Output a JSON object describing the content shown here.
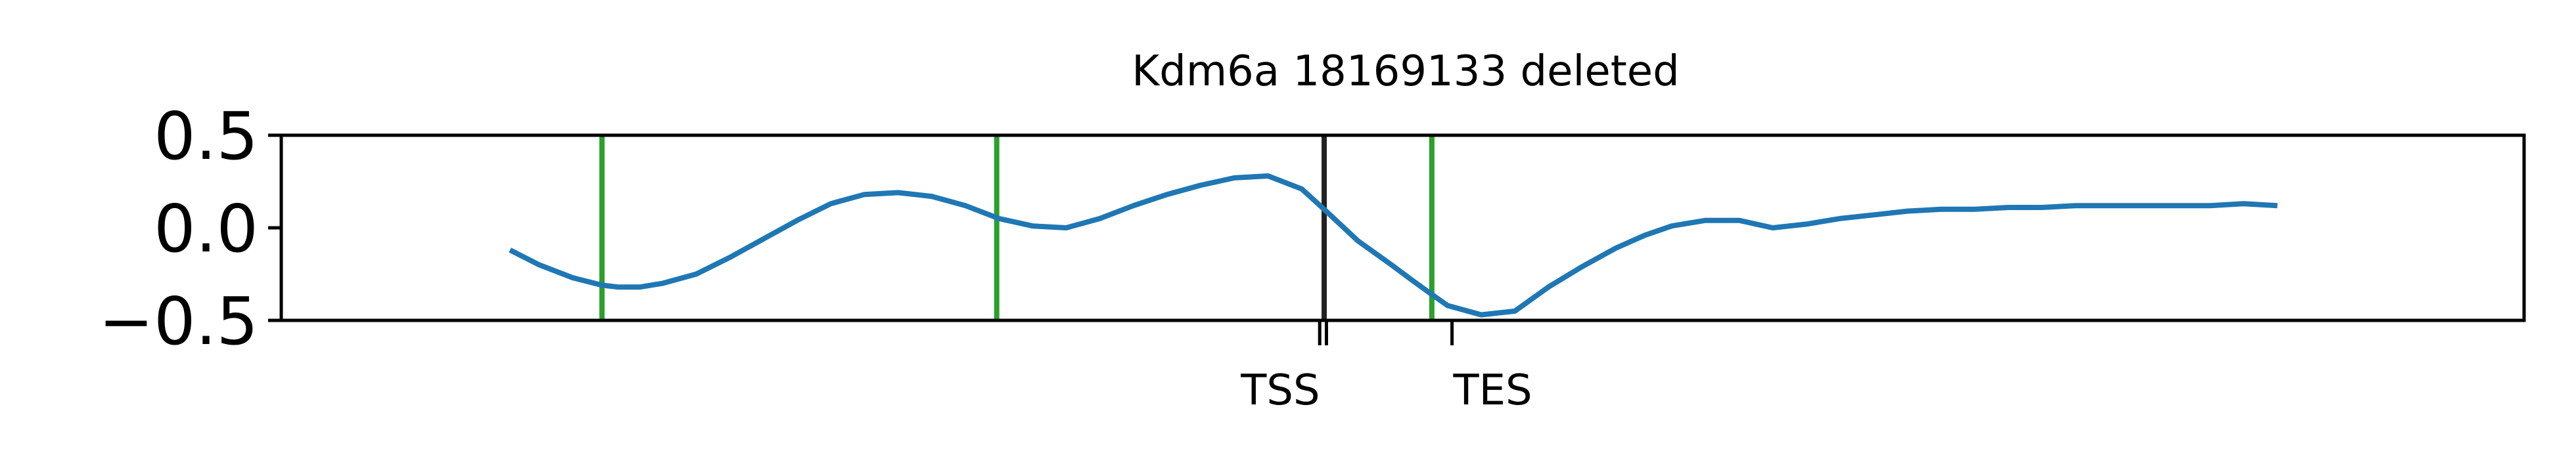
{
  "chart_data": {
    "type": "line",
    "title": "Kdm6a 18169133 deleted",
    "xlabel": "",
    "ylabel": "",
    "xlim": [
      0,
      100
    ],
    "ylim": [
      -0.5,
      0.5
    ],
    "yticks": [
      {
        "value": 0.5,
        "label": "0.5"
      },
      {
        "value": 0.0,
        "label": "0.0"
      },
      {
        "value": -0.5,
        "label": "−0.5"
      }
    ],
    "xticks": [
      {
        "value": 46.3,
        "label": ""
      },
      {
        "value": 46.6,
        "label": "TSS"
      },
      {
        "value": 52.2,
        "label": "TES"
      }
    ],
    "grid": false,
    "legend": "none",
    "series": [
      {
        "color": "#1f77b4",
        "x": [
          10.2,
          11.5,
          13,
          14.3,
          15,
          16,
          17,
          18.5,
          20,
          21.5,
          23,
          24.5,
          26,
          27.5,
          29,
          30.5,
          32,
          33.5,
          35,
          36.5,
          38,
          39.5,
          41,
          42.5,
          44,
          45.5,
          46.5,
          48,
          49.5,
          50.5,
          51.3,
          52,
          53.5,
          55,
          56.5,
          58,
          59.5,
          60.8,
          62,
          63.5,
          65,
          66.5,
          68,
          69.5,
          71,
          72.5,
          74,
          75.5,
          77,
          78.5,
          80,
          81.5,
          83,
          84.5,
          86,
          87.5,
          89
        ],
        "y": [
          -0.12,
          -0.2,
          -0.27,
          -0.31,
          -0.32,
          -0.32,
          -0.3,
          -0.25,
          -0.16,
          -0.06,
          0.04,
          0.13,
          0.18,
          0.19,
          0.17,
          0.12,
          0.05,
          0.01,
          0.0,
          0.05,
          0.12,
          0.18,
          0.23,
          0.27,
          0.28,
          0.21,
          0.1,
          -0.07,
          -0.2,
          -0.29,
          -0.36,
          -0.42,
          -0.47,
          -0.45,
          -0.32,
          -0.21,
          -0.11,
          -0.04,
          0.01,
          0.04,
          0.04,
          0.0,
          0.02,
          0.05,
          0.07,
          0.09,
          0.1,
          0.1,
          0.11,
          0.11,
          0.12,
          0.12,
          0.12,
          0.12,
          0.12,
          0.13,
          0.12
        ]
      }
    ],
    "vlines": [
      {
        "x": 14.3,
        "color": "#2ca02c"
      },
      {
        "x": 31.9,
        "color": "#2ca02c"
      },
      {
        "x": 46.5,
        "color": "#222222"
      },
      {
        "x": 51.3,
        "color": "#2ca02c"
      }
    ]
  }
}
